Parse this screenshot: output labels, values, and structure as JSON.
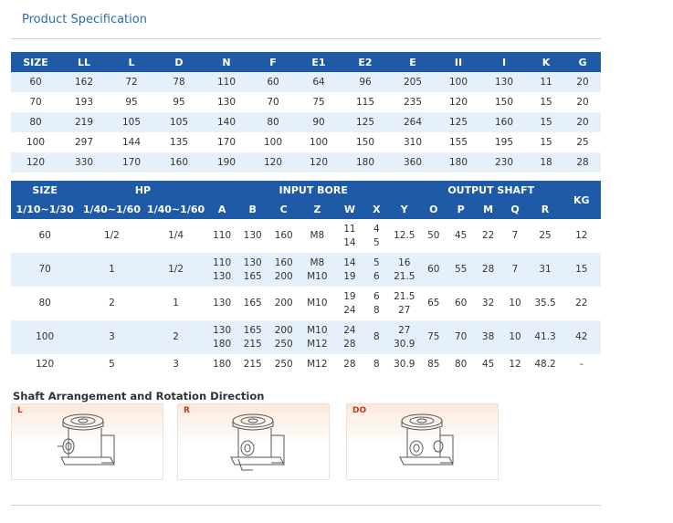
{
  "header": {
    "title": "Product Specification"
  },
  "table1": {
    "columns": [
      "SIZE",
      "LL",
      "L",
      "D",
      "N",
      "F",
      "E1",
      "E2",
      "E",
      "II",
      "I",
      "K",
      "G"
    ],
    "rows": [
      [
        "60",
        "162",
        "72",
        "78",
        "110",
        "60",
        "64",
        "96",
        "205",
        "100",
        "130",
        "11",
        "20"
      ],
      [
        "70",
        "193",
        "95",
        "95",
        "130",
        "70",
        "75",
        "115",
        "235",
        "120",
        "150",
        "15",
        "20"
      ],
      [
        "80",
        "219",
        "105",
        "105",
        "140",
        "80",
        "90",
        "125",
        "264",
        "125",
        "160",
        "15",
        "20"
      ],
      [
        "100",
        "297",
        "144",
        "135",
        "170",
        "100",
        "100",
        "150",
        "310",
        "155",
        "195",
        "15",
        "25"
      ],
      [
        "120",
        "330",
        "170",
        "160",
        "190",
        "120",
        "120",
        "180",
        "360",
        "180",
        "230",
        "18",
        "28"
      ]
    ]
  },
  "table2": {
    "group_headers": {
      "size": "SIZE",
      "hp": "HP",
      "input_bore": "INPUT BORE",
      "output_shaft": "OUTPUT SHAFT",
      "kg": "KG"
    },
    "sub_headers": [
      "1/10~1/30",
      "1/40~1/60",
      "1/40~1/60",
      "A",
      "B",
      "C",
      "Z",
      "W",
      "X",
      "Y",
      "O",
      "P",
      "M",
      "Q",
      "R"
    ],
    "rows": [
      {
        "cells": [
          [
            "60"
          ],
          [
            "1/2"
          ],
          [
            "1/4"
          ],
          [
            "110"
          ],
          [
            "130"
          ],
          [
            "160"
          ],
          [
            "M8"
          ],
          [
            "11",
            "14"
          ],
          [
            "4",
            "5"
          ],
          [
            "12.5"
          ],
          [
            "50"
          ],
          [
            "45"
          ],
          [
            "22"
          ],
          [
            "7"
          ],
          [
            "25"
          ],
          [
            "12"
          ]
        ]
      },
      {
        "cells": [
          [
            "70"
          ],
          [
            "1"
          ],
          [
            "1/2"
          ],
          [
            "110",
            "130"
          ],
          [
            "130",
            "165"
          ],
          [
            "160",
            "200"
          ],
          [
            "M8",
            "M10"
          ],
          [
            "14",
            "19"
          ],
          [
            "5",
            "6"
          ],
          [
            "16",
            "21.5"
          ],
          [
            "60"
          ],
          [
            "55"
          ],
          [
            "28"
          ],
          [
            "7"
          ],
          [
            "31"
          ],
          [
            "15"
          ]
        ]
      },
      {
        "cells": [
          [
            "80"
          ],
          [
            "2"
          ],
          [
            "1"
          ],
          [
            "130"
          ],
          [
            "165"
          ],
          [
            "200"
          ],
          [
            "M10"
          ],
          [
            "19",
            "24"
          ],
          [
            "6",
            "8"
          ],
          [
            "21.5",
            "27"
          ],
          [
            "65"
          ],
          [
            "60"
          ],
          [
            "32"
          ],
          [
            "10"
          ],
          [
            "35.5"
          ],
          [
            "22"
          ]
        ]
      },
      {
        "cells": [
          [
            "100"
          ],
          [
            "3"
          ],
          [
            "2"
          ],
          [
            "130",
            "180"
          ],
          [
            "165",
            "215"
          ],
          [
            "200",
            "250"
          ],
          [
            "M10",
            "M12"
          ],
          [
            "24",
            "28"
          ],
          [
            "8"
          ],
          [
            "27",
            "30.9"
          ],
          [
            "75"
          ],
          [
            "70"
          ],
          [
            "38"
          ],
          [
            "10"
          ],
          [
            "41.3"
          ],
          [
            "42"
          ]
        ]
      },
      {
        "cells": [
          [
            "120"
          ],
          [
            "5"
          ],
          [
            "3"
          ],
          [
            "180"
          ],
          [
            "215"
          ],
          [
            "250"
          ],
          [
            "M12"
          ],
          [
            "28"
          ],
          [
            "8"
          ],
          [
            "30.9"
          ],
          [
            "85"
          ],
          [
            "80"
          ],
          [
            "45"
          ],
          [
            "12"
          ],
          [
            "48.2"
          ],
          [
            "-"
          ]
        ]
      }
    ]
  },
  "arrangement": {
    "title": "Shaft Arrangement and Rotation Direction",
    "panels": [
      {
        "label": "L",
        "icon": "gearbox-left-icon"
      },
      {
        "label": "R",
        "icon": "gearbox-right-icon"
      },
      {
        "label": "DO",
        "icon": "gearbox-double-icon"
      }
    ]
  },
  "colors": {
    "header_bg": "#1f5aa6",
    "stripe": "#e6f0fa",
    "title": "#2b6cb8",
    "panel_label": "#c8331f"
  }
}
